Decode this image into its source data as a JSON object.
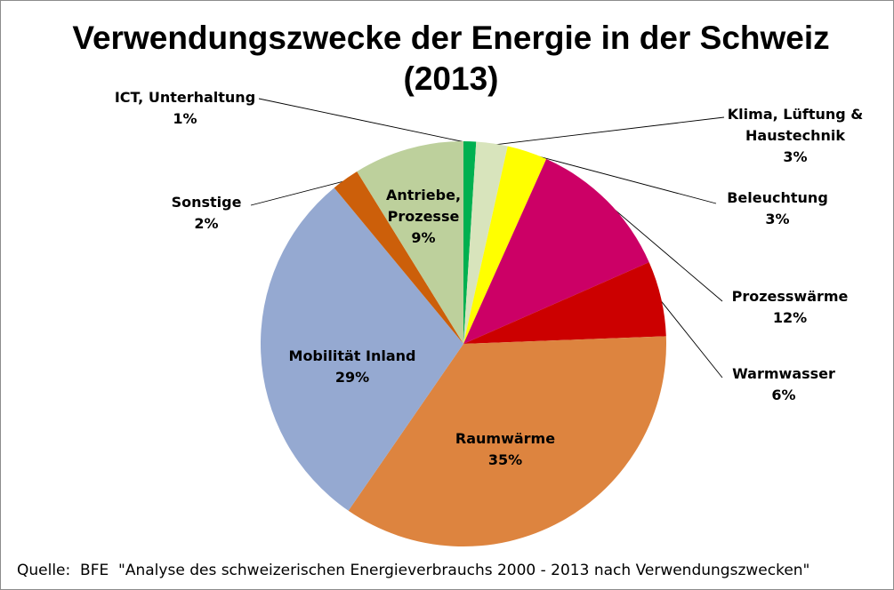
{
  "chart_data": {
    "type": "pie",
    "title": "Verwendungszwecke der Energie in der Schweiz",
    "subtitle": "(2013)",
    "start": "top",
    "direction": "clockwise",
    "slices": [
      {
        "label": [
          "ICT, Unterhaltung"
        ],
        "value": 1,
        "pct_text": "1%",
        "color": "#00b050"
      },
      {
        "label": [
          "Klima, Lüftung &",
          "Haustechnik"
        ],
        "value": 2.5,
        "pct_text": "3%",
        "color": "#d8e4bc"
      },
      {
        "label": [
          "Beleuchtung"
        ],
        "value": 3.2,
        "pct_text": "3%",
        "color": "#ffff00"
      },
      {
        "label": [
          "Prozesswärme"
        ],
        "value": 11.7,
        "pct_text": "12%",
        "color": "#cc0066"
      },
      {
        "label": [
          "Warmwasser"
        ],
        "value": 6.0,
        "pct_text": "6%",
        "color": "#cc0000"
      },
      {
        "label": [
          "Raumwärme"
        ],
        "value": 35.2,
        "pct_text": "35%",
        "color": "#dd843f"
      },
      {
        "label": [
          "Mobilität Inland"
        ],
        "value": 29.4,
        "pct_text": "29%",
        "color": "#95a9d1"
      },
      {
        "label": [
          "Sonstige"
        ],
        "value": 2.2,
        "pct_text": "2%",
        "color": "#cc5f0a"
      },
      {
        "label": [
          "Antriebe,",
          "Prozesse"
        ],
        "value": 8.8,
        "pct_text": "9%",
        "color": "#bdd09c"
      }
    ]
  },
  "source": "Quelle:  BFE  \"Analyse des schweizerischen Energieverbrauchs 2000 - 2013 nach Verwendungszwecken\""
}
